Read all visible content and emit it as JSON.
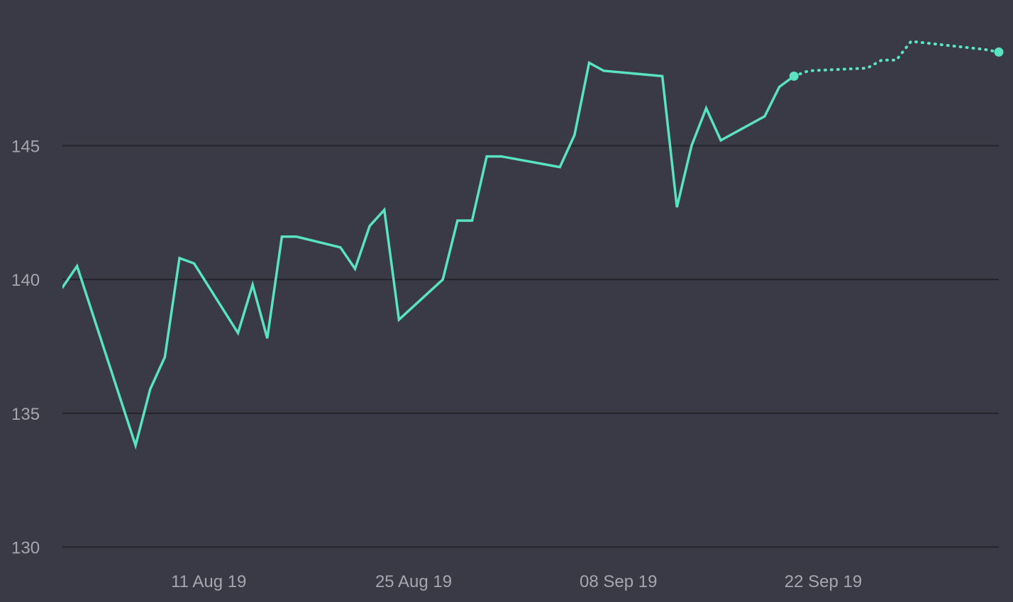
{
  "colors": {
    "background": "#393a45",
    "series": "#59e3c0",
    "grid": "#24242c",
    "tick_text": "#a6a6ae"
  },
  "chart_data": {
    "type": "line",
    "title": "",
    "xlabel": "",
    "ylabel": "",
    "ylim": [
      130,
      150
    ],
    "grid": true,
    "legend": "none",
    "y_ticks": [
      {
        "value": 130,
        "label": "130"
      },
      {
        "value": 135,
        "label": "135"
      },
      {
        "value": 140,
        "label": "140"
      },
      {
        "value": 145,
        "label": "145"
      }
    ],
    "x_ticks": [
      {
        "date": "2019-08-11",
        "label": "11 Aug 19"
      },
      {
        "date": "2019-08-25",
        "label": "25 Aug 19"
      },
      {
        "date": "2019-09-08",
        "label": "08 Sep 19"
      },
      {
        "date": "2019-09-22",
        "label": "22 Sep 19"
      }
    ],
    "x_range": [
      "2019-08-01",
      "2019-10-04"
    ],
    "series": [
      {
        "style": "solid",
        "points": [
          {
            "x": "2019-08-01",
            "y": 139.7
          },
          {
            "x": "2019-08-02",
            "y": 140.5
          },
          {
            "x": "2019-08-06",
            "y": 133.8
          },
          {
            "x": "2019-08-07",
            "y": 135.9
          },
          {
            "x": "2019-08-08",
            "y": 137.1
          },
          {
            "x": "2019-08-09",
            "y": 140.8
          },
          {
            "x": "2019-08-10",
            "y": 140.6
          },
          {
            "x": "2019-08-13",
            "y": 138.0
          },
          {
            "x": "2019-08-14",
            "y": 139.8
          },
          {
            "x": "2019-08-15",
            "y": 137.8
          },
          {
            "x": "2019-08-16",
            "y": 141.6
          },
          {
            "x": "2019-08-17",
            "y": 141.6
          },
          {
            "x": "2019-08-20",
            "y": 141.2
          },
          {
            "x": "2019-08-21",
            "y": 140.4
          },
          {
            "x": "2019-08-22",
            "y": 142.0
          },
          {
            "x": "2019-08-23",
            "y": 142.6
          },
          {
            "x": "2019-08-24",
            "y": 138.5
          },
          {
            "x": "2019-08-27",
            "y": 140.0
          },
          {
            "x": "2019-08-28",
            "y": 142.2
          },
          {
            "x": "2019-08-29",
            "y": 142.2
          },
          {
            "x": "2019-08-30",
            "y": 144.6
          },
          {
            "x": "2019-08-31",
            "y": 144.6
          },
          {
            "x": "2019-09-04",
            "y": 144.2
          },
          {
            "x": "2019-09-05",
            "y": 145.4
          },
          {
            "x": "2019-09-06",
            "y": 148.1
          },
          {
            "x": "2019-09-07",
            "y": 147.8
          },
          {
            "x": "2019-09-11",
            "y": 147.6
          },
          {
            "x": "2019-09-12",
            "y": 142.7
          },
          {
            "x": "2019-09-13",
            "y": 145.0
          },
          {
            "x": "2019-09-14",
            "y": 146.4
          },
          {
            "x": "2019-09-15",
            "y": 145.2
          },
          {
            "x": "2019-09-18",
            "y": 146.1
          },
          {
            "x": "2019-09-19",
            "y": 147.2
          },
          {
            "x": "2019-09-20",
            "y": 147.6
          }
        ]
      },
      {
        "style": "dotted",
        "points": [
          {
            "x": "2019-09-20",
            "y": 147.6
          },
          {
            "x": "2019-09-21",
            "y": 147.8
          },
          {
            "x": "2019-09-25",
            "y": 147.9
          },
          {
            "x": "2019-09-26",
            "y": 148.2
          },
          {
            "x": "2019-09-27",
            "y": 148.2
          },
          {
            "x": "2019-09-28",
            "y": 148.9
          },
          {
            "x": "2019-10-03",
            "y": 148.6
          },
          {
            "x": "2019-10-04",
            "y": 148.5
          }
        ]
      }
    ]
  }
}
